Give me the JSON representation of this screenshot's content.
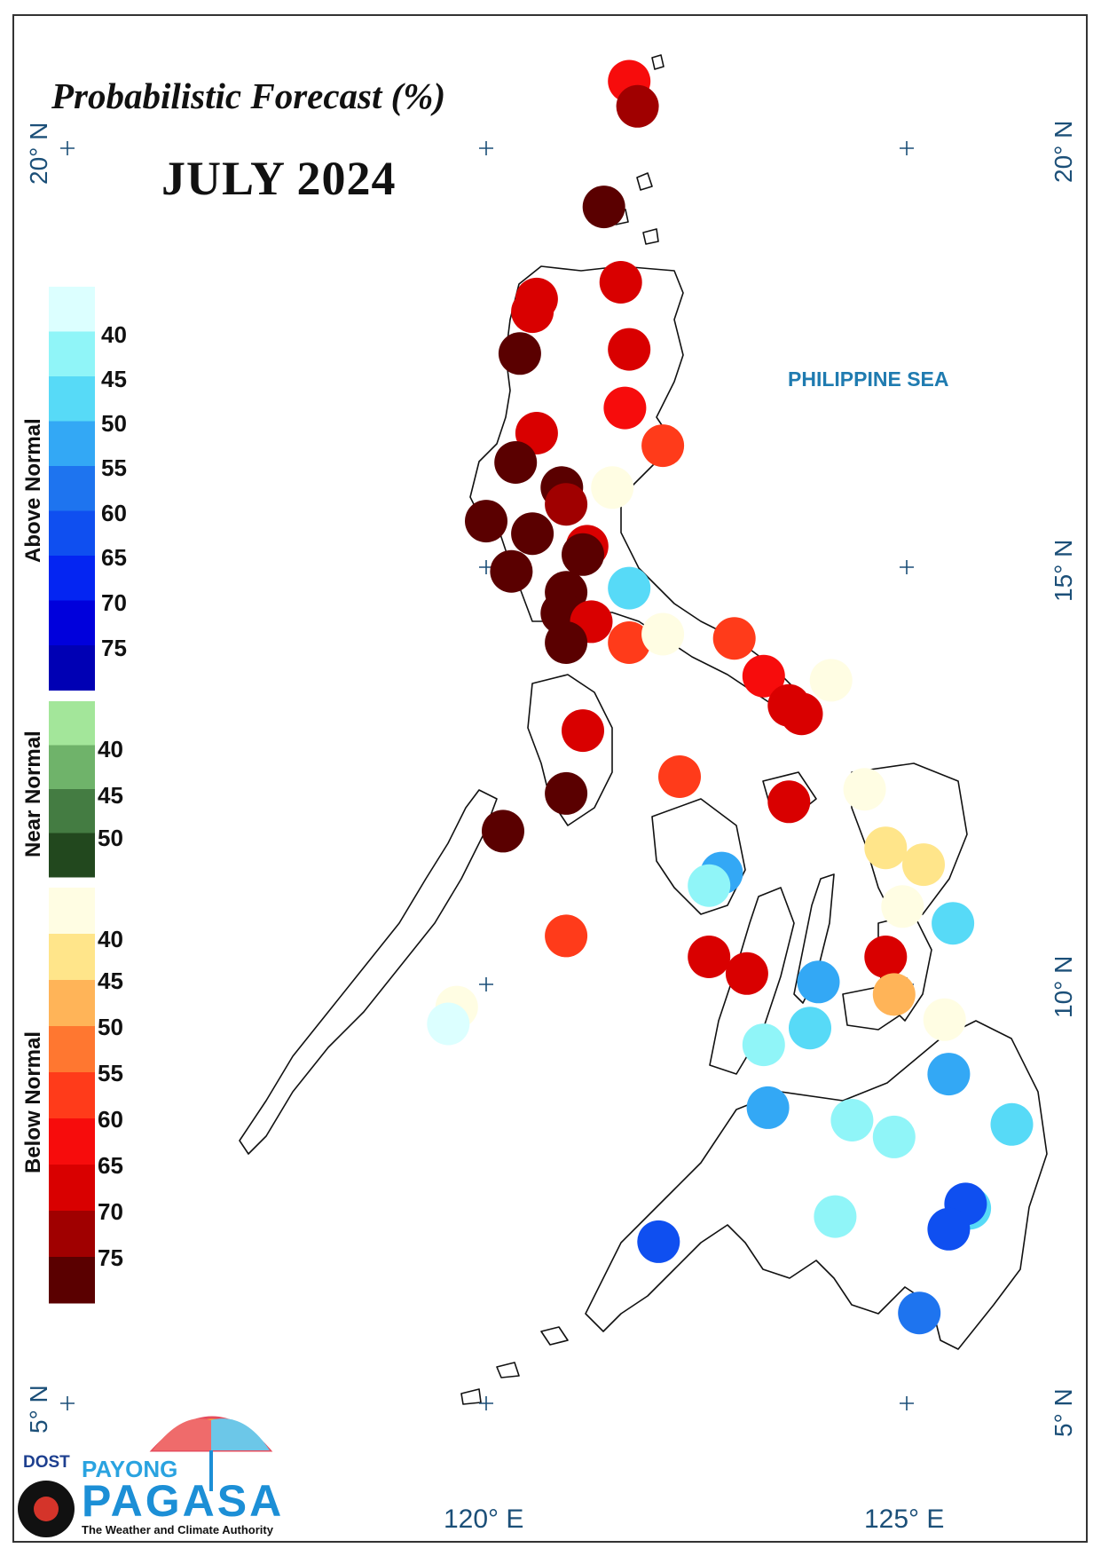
{
  "title": "Probabilistic Forecast (%)",
  "period": "JULY 2024",
  "sea_label": "PHILIPPINE SEA",
  "axes": {
    "latitude_labels": [
      "20° N",
      "15° N",
      "10° N",
      "5° N"
    ],
    "longitude_labels": [
      "120° E",
      "125° E"
    ]
  },
  "legend": {
    "above_normal": {
      "label": "Above Normal",
      "ticks": [
        "40",
        "45",
        "50",
        "55",
        "60",
        "65",
        "70",
        "75"
      ],
      "colors": [
        "#dcffff",
        "#90f5f8",
        "#57daf7",
        "#33a8f5",
        "#1e74ef",
        "#0f4ff0",
        "#0425f2",
        "#0000dc",
        "#0000b4"
      ]
    },
    "near_normal": {
      "label": "Near Normal",
      "ticks": [
        "40",
        "45",
        "50"
      ],
      "colors": [
        "#a3e69a",
        "#6fb36a",
        "#447c42",
        "#22481e"
      ]
    },
    "below_normal": {
      "label": "Below Normal",
      "ticks": [
        "40",
        "45",
        "50",
        "55",
        "60",
        "65",
        "70",
        "75"
      ],
      "colors": [
        "#fffde3",
        "#ffe58a",
        "#ffb458",
        "#ff7730",
        "#ff3b1a",
        "#f70c0c",
        "#d90000",
        "#a00000",
        "#5a0000"
      ]
    }
  },
  "category_colors": {
    "B75": "#5a0000",
    "B70": "#a00000",
    "B65": "#d90000",
    "B60": "#f70c0c",
    "B55": "#ff3b1a",
    "B50": "#ff7730",
    "B45": "#ffb458",
    "B40": "#ffe58a",
    "B35": "#fffde3",
    "A35": "#dcffff",
    "A40": "#90f5f8",
    "A45": "#57daf7",
    "A50": "#33a8f5",
    "A55": "#1e74ef",
    "A60": "#0f4ff0"
  },
  "stations": [
    {
      "lon": 121.7,
      "lat": 20.8,
      "cat": "B60"
    },
    {
      "lon": 121.8,
      "lat": 20.5,
      "cat": "B70"
    },
    {
      "lon": 121.4,
      "lat": 19.3,
      "cat": "B75"
    },
    {
      "lon": 121.6,
      "lat": 18.4,
      "cat": "B65"
    },
    {
      "lon": 120.6,
      "lat": 18.2,
      "cat": "B65"
    },
    {
      "lon": 120.55,
      "lat": 18.05,
      "cat": "B65"
    },
    {
      "lon": 120.4,
      "lat": 17.55,
      "cat": "B75"
    },
    {
      "lon": 121.7,
      "lat": 17.6,
      "cat": "B65"
    },
    {
      "lon": 121.65,
      "lat": 16.9,
      "cat": "B60"
    },
    {
      "lon": 120.6,
      "lat": 16.6,
      "cat": "B65"
    },
    {
      "lon": 122.1,
      "lat": 16.45,
      "cat": "B55"
    },
    {
      "lon": 120.35,
      "lat": 16.25,
      "cat": "B75"
    },
    {
      "lon": 120.9,
      "lat": 15.95,
      "cat": "B75"
    },
    {
      "lon": 121.5,
      "lat": 15.95,
      "cat": "B35"
    },
    {
      "lon": 120.95,
      "lat": 15.75,
      "cat": "B70"
    },
    {
      "lon": 120.0,
      "lat": 15.55,
      "cat": "B75"
    },
    {
      "lon": 120.55,
      "lat": 15.4,
      "cat": "B75"
    },
    {
      "lon": 121.2,
      "lat": 15.25,
      "cat": "B65"
    },
    {
      "lon": 121.15,
      "lat": 15.15,
      "cat": "B75"
    },
    {
      "lon": 120.3,
      "lat": 14.95,
      "cat": "B75"
    },
    {
      "lon": 121.7,
      "lat": 14.75,
      "cat": "A45"
    },
    {
      "lon": 120.95,
      "lat": 14.7,
      "cat": "B75"
    },
    {
      "lon": 120.9,
      "lat": 14.45,
      "cat": "B75"
    },
    {
      "lon": 121.25,
      "lat": 14.35,
      "cat": "B65"
    },
    {
      "lon": 121.7,
      "lat": 14.1,
      "cat": "B55"
    },
    {
      "lon": 122.1,
      "lat": 14.2,
      "cat": "B35"
    },
    {
      "lon": 122.95,
      "lat": 14.15,
      "cat": "B55"
    },
    {
      "lon": 120.95,
      "lat": 14.1,
      "cat": "B75"
    },
    {
      "lon": 124.1,
      "lat": 13.65,
      "cat": "B35"
    },
    {
      "lon": 123.3,
      "lat": 13.7,
      "cat": "B60"
    },
    {
      "lon": 123.6,
      "lat": 13.35,
      "cat": "B65"
    },
    {
      "lon": 123.75,
      "lat": 13.25,
      "cat": "B65"
    },
    {
      "lon": 121.15,
      "lat": 13.05,
      "cat": "B65"
    },
    {
      "lon": 122.3,
      "lat": 12.5,
      "cat": "B55"
    },
    {
      "lon": 124.5,
      "lat": 12.35,
      "cat": "B35"
    },
    {
      "lon": 120.95,
      "lat": 12.3,
      "cat": "B75"
    },
    {
      "lon": 123.6,
      "lat": 12.2,
      "cat": "B65"
    },
    {
      "lon": 120.2,
      "lat": 11.85,
      "cat": "B75"
    },
    {
      "lon": 124.75,
      "lat": 11.65,
      "cat": "B40"
    },
    {
      "lon": 122.8,
      "lat": 11.35,
      "cat": "A50"
    },
    {
      "lon": 125.2,
      "lat": 11.45,
      "cat": "B40"
    },
    {
      "lon": 122.65,
      "lat": 11.2,
      "cat": "A40"
    },
    {
      "lon": 124.95,
      "lat": 10.95,
      "cat": "B35"
    },
    {
      "lon": 125.55,
      "lat": 10.75,
      "cat": "A45"
    },
    {
      "lon": 120.95,
      "lat": 10.6,
      "cat": "B55"
    },
    {
      "lon": 122.65,
      "lat": 10.35,
      "cat": "B65"
    },
    {
      "lon": 124.75,
      "lat": 10.35,
      "cat": "B65"
    },
    {
      "lon": 123.1,
      "lat": 10.15,
      "cat": "B65"
    },
    {
      "lon": 123.95,
      "lat": 10.05,
      "cat": "A50"
    },
    {
      "lon": 124.85,
      "lat": 9.9,
      "cat": "B45"
    },
    {
      "lon": 125.45,
      "lat": 9.6,
      "cat": "B35"
    },
    {
      "lon": 119.65,
      "lat": 9.75,
      "cat": "B35"
    },
    {
      "lon": 119.55,
      "lat": 9.55,
      "cat": "A35"
    },
    {
      "lon": 123.85,
      "lat": 9.5,
      "cat": "A45"
    },
    {
      "lon": 123.3,
      "lat": 9.3,
      "cat": "A40"
    },
    {
      "lon": 125.5,
      "lat": 8.95,
      "cat": "A50"
    },
    {
      "lon": 123.35,
      "lat": 8.55,
      "cat": "A50"
    },
    {
      "lon": 124.35,
      "lat": 8.4,
      "cat": "A40"
    },
    {
      "lon": 126.25,
      "lat": 8.35,
      "cat": "A45"
    },
    {
      "lon": 124.85,
      "lat": 8.2,
      "cat": "A40"
    },
    {
      "lon": 125.75,
      "lat": 7.35,
      "cat": "A45"
    },
    {
      "lon": 125.7,
      "lat": 7.4,
      "cat": "A60"
    },
    {
      "lon": 124.15,
      "lat": 7.25,
      "cat": "A40"
    },
    {
      "lon": 125.5,
      "lat": 7.1,
      "cat": "A60"
    },
    {
      "lon": 122.05,
      "lat": 6.95,
      "cat": "A60"
    },
    {
      "lon": 125.15,
      "lat": 6.1,
      "cat": "A55"
    }
  ],
  "logo": {
    "dost": "DOST",
    "payong": "PAYONG",
    "pagasa": "PAGASA",
    "tagline": "The Weather and Climate Authority"
  }
}
